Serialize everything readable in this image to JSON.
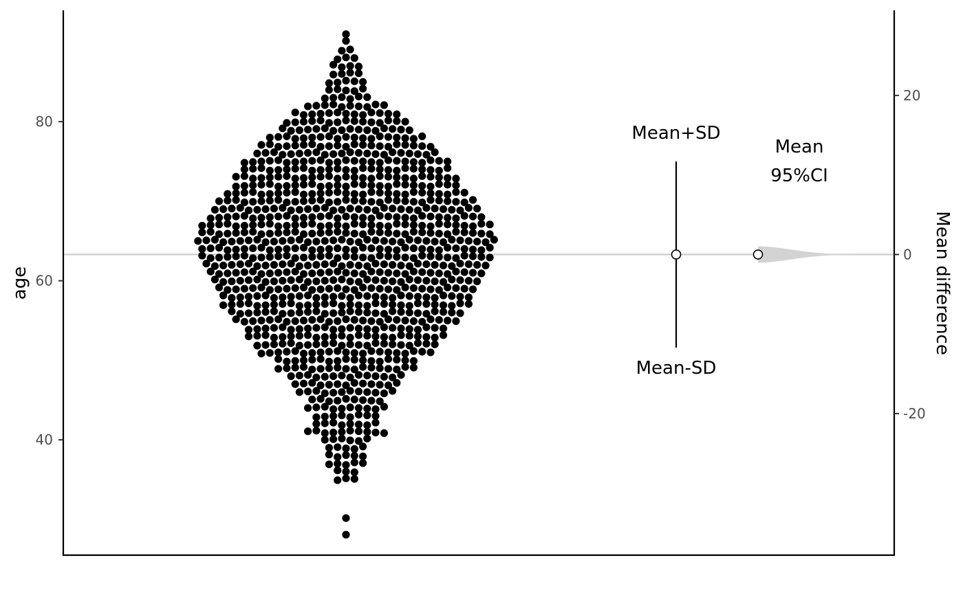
{
  "chart_data": {
    "type": "scatter",
    "subtype": "beeswarm with mean difference estimation",
    "left_axis": {
      "label": "age",
      "ticks": [
        40,
        60,
        80
      ],
      "ylim": [
        25.5,
        94
      ]
    },
    "right_axis": {
      "label": "Mean difference",
      "ticks": [
        -20,
        0,
        20
      ],
      "tick_labels": [
        "-20",
        "0",
        "20"
      ],
      "reference": 63.3
    },
    "grid": false,
    "legend": "none",
    "summary": {
      "mean": 63.3,
      "mean_plus_sd": 75.0,
      "mean_minus_sd": 51.6,
      "ci_low": -0.6,
      "ci_high": 0.6
    },
    "annotations": {
      "mean_plus_sd": "Mean+SD",
      "mean_minus_sd": "Mean-SD",
      "mean": "Mean",
      "ci": "95%CI"
    },
    "age_counts": [
      {
        "age": 28,
        "count": 1
      },
      {
        "age": 30,
        "count": 1
      },
      {
        "age": 35,
        "count": 3
      },
      {
        "age": 36,
        "count": 3
      },
      {
        "age": 37,
        "count": 5
      },
      {
        "age": 38,
        "count": 5
      },
      {
        "age": 39,
        "count": 5
      },
      {
        "age": 40,
        "count": 6
      },
      {
        "age": 41,
        "count": 10
      },
      {
        "age": 42,
        "count": 8
      },
      {
        "age": 43,
        "count": 8
      },
      {
        "age": 44,
        "count": 10
      },
      {
        "age": 45,
        "count": 9
      },
      {
        "age": 46,
        "count": 12
      },
      {
        "age": 47,
        "count": 13
      },
      {
        "age": 48,
        "count": 14
      },
      {
        "age": 49,
        "count": 17
      },
      {
        "age": 50,
        "count": 17
      },
      {
        "age": 51,
        "count": 21
      },
      {
        "age": 52,
        "count": 22
      },
      {
        "age": 53,
        "count": 24
      },
      {
        "age": 54,
        "count": 24
      },
      {
        "age": 55,
        "count": 27
      },
      {
        "age": 56,
        "count": 28
      },
      {
        "age": 57,
        "count": 30
      },
      {
        "age": 58,
        "count": 30
      },
      {
        "age": 59,
        "count": 31
      },
      {
        "age": 60,
        "count": 32
      },
      {
        "age": 61,
        "count": 33
      },
      {
        "age": 62,
        "count": 34
      },
      {
        "age": 63,
        "count": 35
      },
      {
        "age": 64,
        "count": 35
      },
      {
        "age": 65,
        "count": 36
      },
      {
        "age": 66,
        "count": 35
      },
      {
        "age": 67,
        "count": 35
      },
      {
        "age": 68,
        "count": 33
      },
      {
        "age": 69,
        "count": 32
      },
      {
        "age": 70,
        "count": 31
      },
      {
        "age": 71,
        "count": 29
      },
      {
        "age": 72,
        "count": 27
      },
      {
        "age": 73,
        "count": 27
      },
      {
        "age": 74,
        "count": 25
      },
      {
        "age": 75,
        "count": 25
      },
      {
        "age": 76,
        "count": 22
      },
      {
        "age": 77,
        "count": 21
      },
      {
        "age": 78,
        "count": 19
      },
      {
        "age": 79,
        "count": 16
      },
      {
        "age": 80,
        "count": 15
      },
      {
        "age": 81,
        "count": 13
      },
      {
        "age": 82,
        "count": 10
      },
      {
        "age": 83,
        "count": 6
      },
      {
        "age": 84,
        "count": 5
      },
      {
        "age": 85,
        "count": 5
      },
      {
        "age": 86,
        "count": 4
      },
      {
        "age": 87,
        "count": 4
      },
      {
        "age": 88,
        "count": 3
      },
      {
        "age": 89,
        "count": 2
      },
      {
        "age": 90,
        "count": 1
      },
      {
        "age": 91,
        "count": 1
      }
    ]
  }
}
